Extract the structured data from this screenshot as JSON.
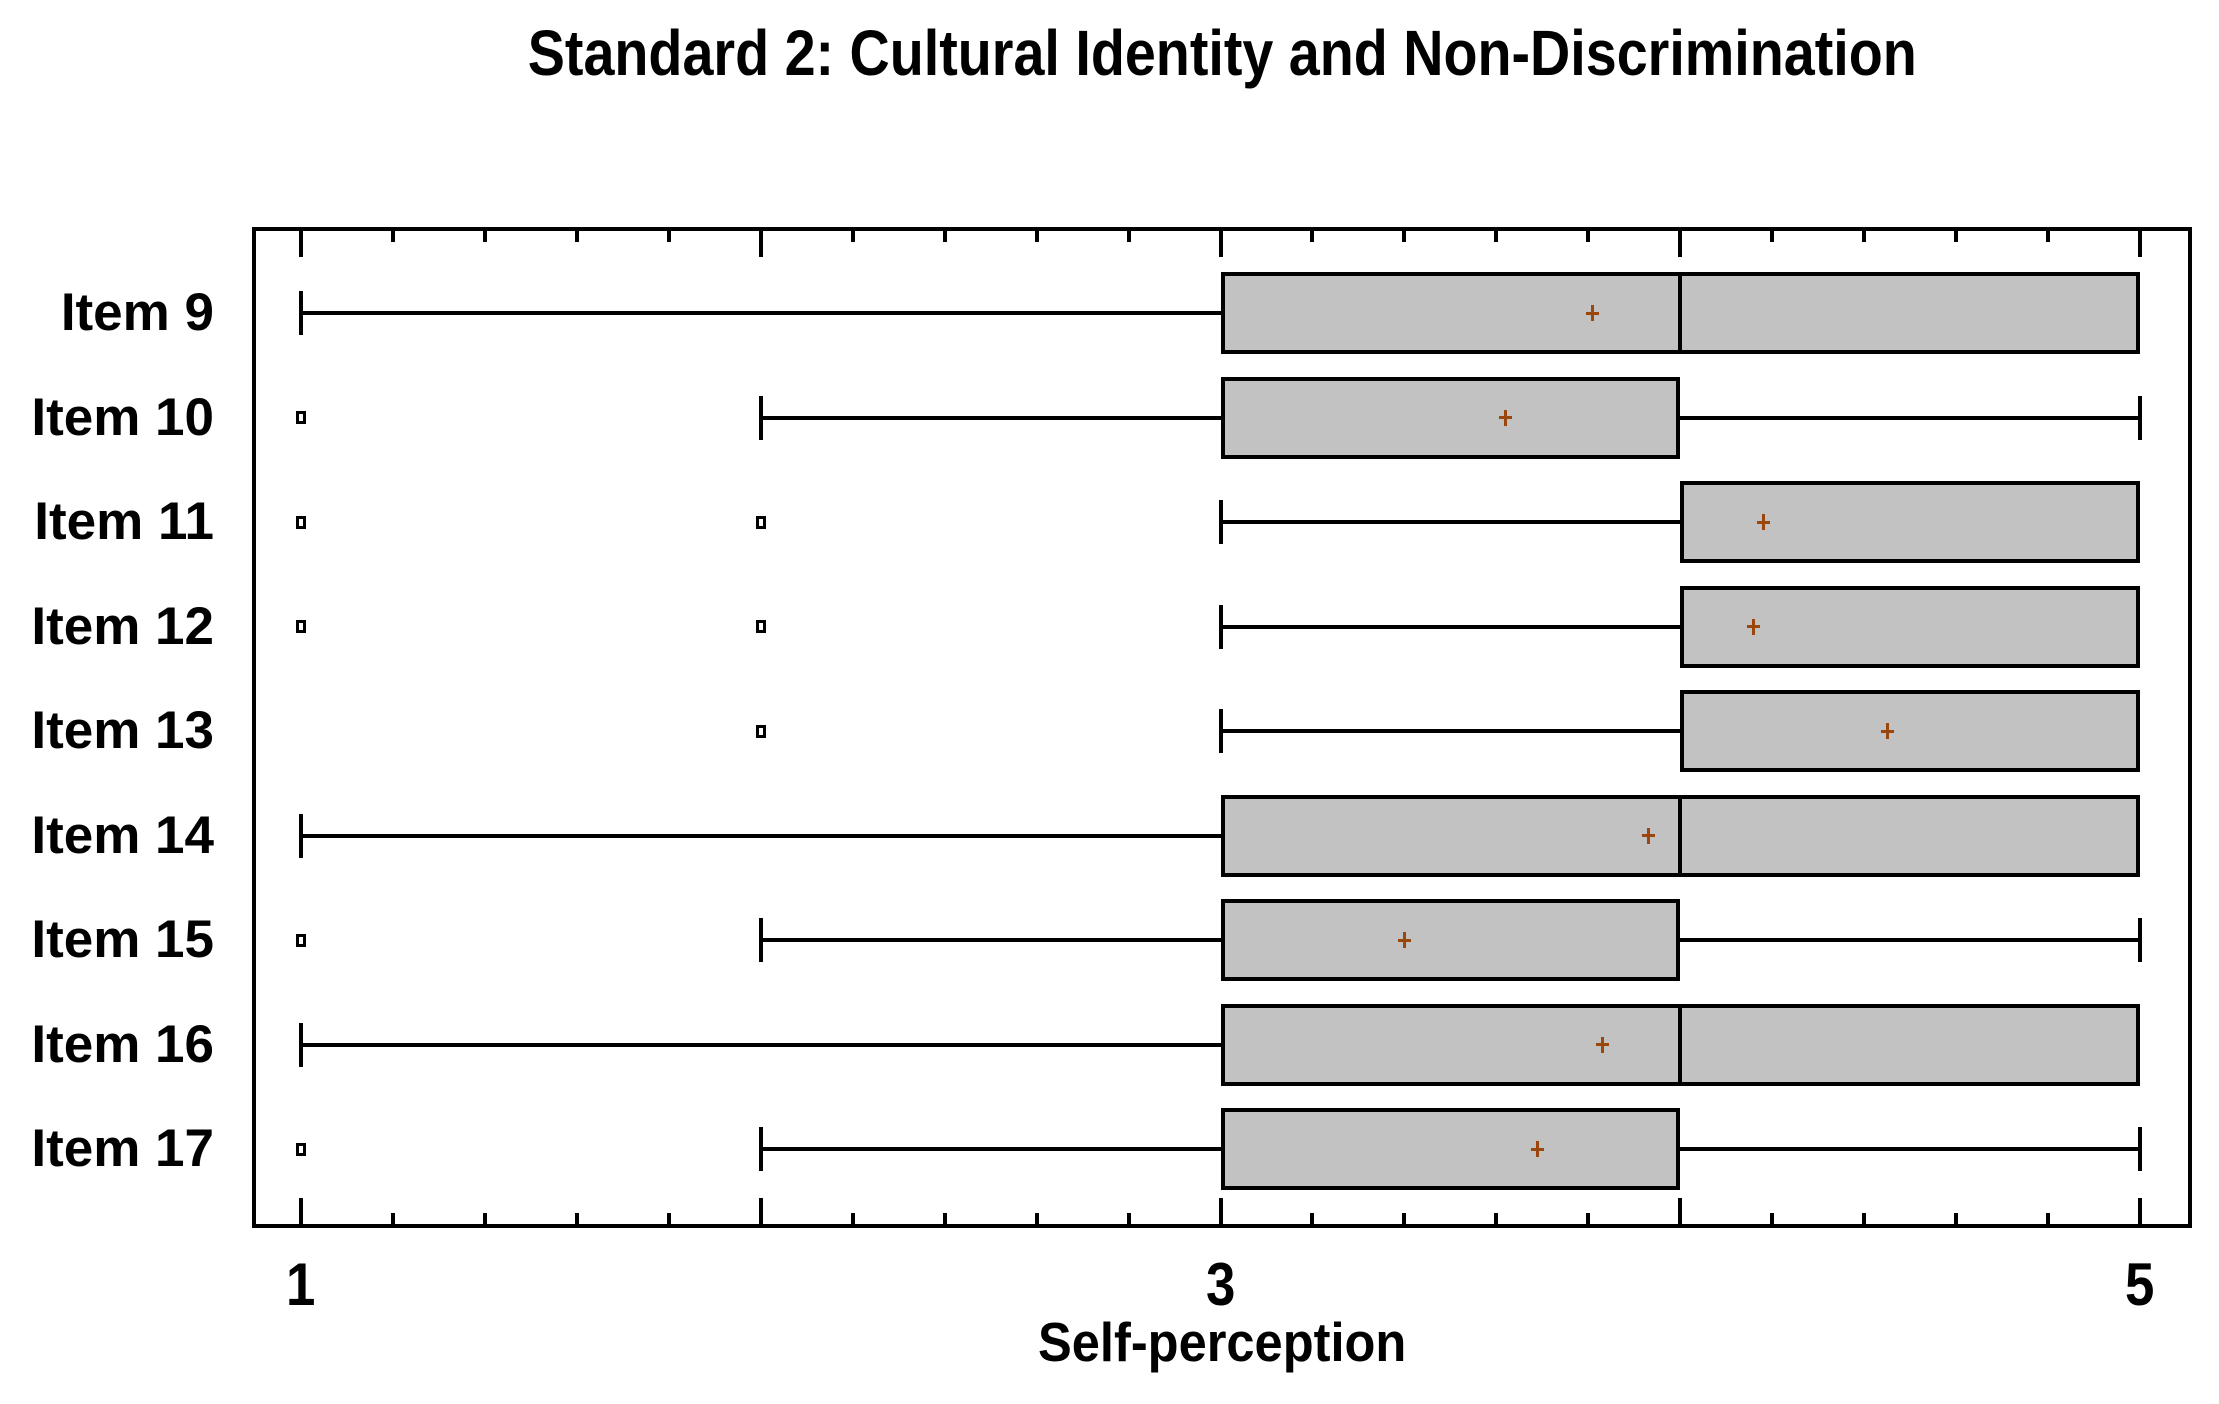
{
  "chart_data": {
    "type": "boxplot",
    "orientation": "horizontal",
    "title": "Standard 2: Cultural Identity and Non-Discrimination",
    "xlabel": "Self-perception",
    "x_axis": {
      "min": 1,
      "max": 5,
      "major_tick_step": 1,
      "minor_tick_step": 0.2,
      "labeled_ticks": [
        {
          "value": 1,
          "label": "1"
        },
        {
          "value": 3,
          "label": "3"
        },
        {
          "value": 5,
          "label": "5"
        }
      ]
    },
    "legend": "none",
    "grid": "off",
    "series": [
      {
        "label": "Item 9",
        "whisker_low": 1,
        "q1": 3,
        "median": 4,
        "q3": 5,
        "whisker_high": 5,
        "mean": 3.81,
        "outliers": []
      },
      {
        "label": "Item 10",
        "whisker_low": 2,
        "q1": 3,
        "median": null,
        "q3": 4,
        "whisker_high": 5,
        "mean": 3.62,
        "outliers": [
          1
        ]
      },
      {
        "label": "Item 11",
        "whisker_low": 3,
        "q1": 4,
        "median": null,
        "q3": 5,
        "whisker_high": 5,
        "mean": 4.18,
        "outliers": [
          1,
          2
        ]
      },
      {
        "label": "Item 12",
        "whisker_low": 3,
        "q1": 4,
        "median": null,
        "q3": 5,
        "whisker_high": 5,
        "mean": 4.16,
        "outliers": [
          1,
          2
        ]
      },
      {
        "label": "Item 13",
        "whisker_low": 3,
        "q1": 4,
        "median": null,
        "q3": 5,
        "whisker_high": 5,
        "mean": 4.45,
        "outliers": [
          2
        ]
      },
      {
        "label": "Item 14",
        "whisker_low": 1,
        "q1": 3,
        "median": 4,
        "q3": 5,
        "whisker_high": 5,
        "mean": 3.93,
        "outliers": []
      },
      {
        "label": "Item 15",
        "whisker_low": 2,
        "q1": 3,
        "median": null,
        "q3": 4,
        "whisker_high": 5,
        "mean": 3.4,
        "outliers": [
          1
        ]
      },
      {
        "label": "Item 16",
        "whisker_low": 1,
        "q1": 3,
        "median": 4,
        "q3": 5,
        "whisker_high": 5,
        "mean": 3.83,
        "outliers": []
      },
      {
        "label": "Item 17",
        "whisker_low": 2,
        "q1": 3,
        "median": null,
        "q3": 4,
        "whisker_high": 5,
        "mean": 3.69,
        "outliers": [
          1
        ]
      }
    ],
    "style": {
      "box_fill": "#c2c2c2",
      "line_color": "#000000",
      "mean_marker_color": "#9a460d",
      "background": "#ffffff"
    }
  }
}
